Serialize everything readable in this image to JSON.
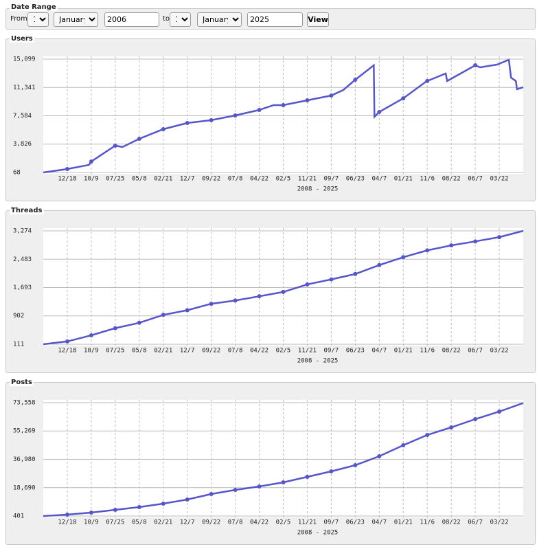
{
  "form": {
    "legend": "Date Range",
    "from_label": "From",
    "from_day": "1",
    "from_month": "January",
    "from_year": "2006",
    "to_label": "to",
    "to_day": "1",
    "to_month": "January",
    "to_year": "2025",
    "button": "View"
  },
  "chart_data": [
    {
      "type": "line",
      "title": "Users",
      "xlabel": "2008 - 2025",
      "color": "#5555cc",
      "grid": true,
      "xlim": [
        0,
        20
      ],
      "xticks": [
        {
          "value": 1,
          "label": "12/18"
        },
        {
          "value": 2,
          "label": "10/9"
        },
        {
          "value": 3,
          "label": "07/25"
        },
        {
          "value": 4,
          "label": "05/8"
        },
        {
          "value": 5,
          "label": "02/21"
        },
        {
          "value": 6,
          "label": "12/7"
        },
        {
          "value": 7,
          "label": "09/22"
        },
        {
          "value": 8,
          "label": "07/8"
        },
        {
          "value": 9,
          "label": "04/22"
        },
        {
          "value": 10,
          "label": "02/5"
        },
        {
          "value": 11,
          "label": "11/21"
        },
        {
          "value": 12,
          "label": "09/7"
        },
        {
          "value": 13,
          "label": "06/23"
        },
        {
          "value": 14,
          "label": "04/7"
        },
        {
          "value": 15,
          "label": "01/21"
        },
        {
          "value": 16,
          "label": "11/6"
        },
        {
          "value": 17,
          "label": "08/22"
        },
        {
          "value": 18,
          "label": "06/7"
        },
        {
          "value": 19,
          "label": "03/22"
        }
      ],
      "ylim": [
        68,
        15099
      ],
      "yticks": [
        68,
        {
          "value": 3826,
          "label": "3,826"
        },
        {
          "value": 7584,
          "label": "7,584"
        },
        {
          "value": 11341,
          "label": "11,341"
        },
        {
          "value": 15099,
          "label": "15,099"
        }
      ],
      "x": [
        0,
        1,
        1.9,
        2,
        3,
        3.3,
        4,
        5,
        6,
        7,
        8,
        9,
        9.6,
        10,
        11,
        12,
        12.5,
        13,
        13.77,
        13.8,
        14,
        15,
        15.9,
        16,
        16.77,
        16.83,
        18,
        18.2,
        18.91,
        19.4,
        19.49,
        19.69,
        19.74,
        20
      ],
      "values": [
        68,
        520,
        1070,
        1520,
        3620,
        3440,
        4530,
        5810,
        6630,
        7000,
        7630,
        8360,
        9000,
        9000,
        9630,
        10270,
        11000,
        12370,
        14280,
        7450,
        8090,
        9900,
        12000,
        12190,
        13190,
        12190,
        14280,
        14010,
        14370,
        15010,
        12640,
        12190,
        11100,
        11370
      ]
    },
    {
      "type": "line",
      "title": "Threads",
      "xlabel": "2008 - 2025",
      "color": "#5555cc",
      "grid": true,
      "xlim": [
        0,
        20
      ],
      "xticks": [
        {
          "value": 1,
          "label": "12/18"
        },
        {
          "value": 2,
          "label": "10/9"
        },
        {
          "value": 3,
          "label": "07/25"
        },
        {
          "value": 4,
          "label": "05/8"
        },
        {
          "value": 5,
          "label": "02/21"
        },
        {
          "value": 6,
          "label": "12/7"
        },
        {
          "value": 7,
          "label": "09/22"
        },
        {
          "value": 8,
          "label": "07/8"
        },
        {
          "value": 9,
          "label": "04/22"
        },
        {
          "value": 10,
          "label": "02/5"
        },
        {
          "value": 11,
          "label": "11/21"
        },
        {
          "value": 12,
          "label": "09/7"
        },
        {
          "value": 13,
          "label": "06/23"
        },
        {
          "value": 14,
          "label": "04/7"
        },
        {
          "value": 15,
          "label": "01/21"
        },
        {
          "value": 16,
          "label": "11/6"
        },
        {
          "value": 17,
          "label": "08/22"
        },
        {
          "value": 18,
          "label": "06/7"
        },
        {
          "value": 19,
          "label": "03/22"
        }
      ],
      "ylim": [
        111,
        3274
      ],
      "yticks": [
        111,
        902,
        {
          "value": 1693,
          "label": "1,693"
        },
        {
          "value": 2483,
          "label": "2,483"
        },
        {
          "value": 3274,
          "label": "3,274"
        }
      ],
      "x": [
        0,
        1,
        2,
        3,
        4,
        5,
        6,
        7,
        8,
        9,
        10,
        11,
        12,
        13,
        14,
        15,
        16,
        17,
        18,
        19,
        20
      ],
      "values": [
        111,
        190,
        360,
        560,
        710,
        930,
        1060,
        1240,
        1330,
        1450,
        1570,
        1780,
        1920,
        2070,
        2320,
        2540,
        2730,
        2870,
        2980,
        3100,
        3274
      ]
    },
    {
      "type": "line",
      "title": "Posts",
      "xlabel": "2008 - 2025",
      "color": "#5555cc",
      "grid": true,
      "xlim": [
        0,
        20
      ],
      "xticks": [
        {
          "value": 1,
          "label": "12/18"
        },
        {
          "value": 2,
          "label": "10/9"
        },
        {
          "value": 3,
          "label": "07/25"
        },
        {
          "value": 4,
          "label": "05/8"
        },
        {
          "value": 5,
          "label": "02/21"
        },
        {
          "value": 6,
          "label": "12/7"
        },
        {
          "value": 7,
          "label": "09/22"
        },
        {
          "value": 8,
          "label": "07/8"
        },
        {
          "value": 9,
          "label": "04/22"
        },
        {
          "value": 10,
          "label": "02/5"
        },
        {
          "value": 11,
          "label": "11/21"
        },
        {
          "value": 12,
          "label": "09/7"
        },
        {
          "value": 13,
          "label": "06/23"
        },
        {
          "value": 14,
          "label": "04/7"
        },
        {
          "value": 15,
          "label": "01/21"
        },
        {
          "value": 16,
          "label": "11/6"
        },
        {
          "value": 17,
          "label": "08/22"
        },
        {
          "value": 18,
          "label": "06/7"
        },
        {
          "value": 19,
          "label": "03/22"
        }
      ],
      "ylim": [
        401,
        73558
      ],
      "yticks": [
        401,
        {
          "value": 18690,
          "label": "18,690"
        },
        {
          "value": 36980,
          "label": "36,980"
        },
        {
          "value": 55269,
          "label": "55,269"
        },
        {
          "value": 73558,
          "label": "73,558"
        }
      ],
      "x": [
        0,
        1,
        2,
        3,
        4,
        5,
        6,
        7,
        8,
        9,
        10,
        11,
        12,
        13,
        14,
        15,
        16,
        17,
        18,
        19,
        20
      ],
      "values": [
        401,
        1290,
        2620,
        4390,
        6170,
        8380,
        11040,
        14590,
        17250,
        19470,
        22130,
        25680,
        29230,
        33220,
        38980,
        46080,
        52730,
        57610,
        62930,
        67800,
        73300
      ]
    }
  ]
}
